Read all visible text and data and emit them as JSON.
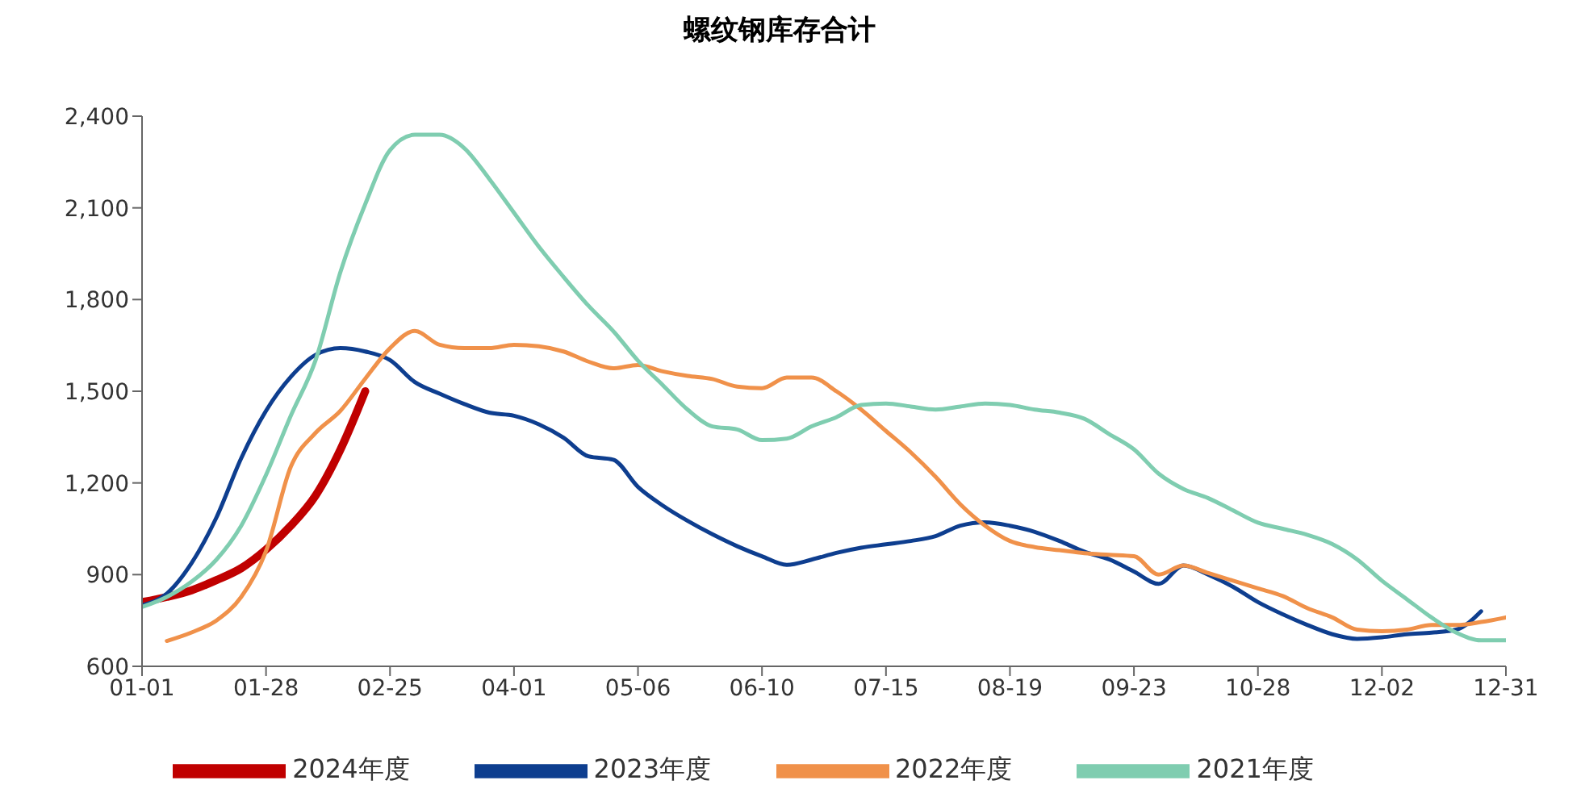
{
  "chart_data": {
    "type": "line",
    "title": "螺纹钢库存合计",
    "categories": [
      "01-01",
      null,
      null,
      null,
      null,
      "01-28",
      null,
      null,
      null,
      null,
      "02-25",
      null,
      null,
      null,
      null,
      "04-01",
      null,
      null,
      null,
      null,
      "05-06",
      null,
      null,
      null,
      null,
      "06-10",
      null,
      null,
      null,
      null,
      "07-15",
      null,
      null,
      null,
      null,
      "08-19",
      null,
      null,
      null,
      null,
      "09-23",
      null,
      null,
      null,
      null,
      "10-28",
      null,
      null,
      null,
      null,
      "12-02",
      null,
      null,
      null,
      null,
      "12-31"
    ],
    "series": [
      {
        "name": "2024年度",
        "color": "#c00000",
        "values": [
          810,
          827,
          849,
          882,
          921,
          982,
          1060,
          1159,
          1309,
          1500,
          null,
          null,
          null,
          null,
          null,
          null,
          null,
          null,
          null,
          null,
          null,
          null,
          null,
          null,
          null,
          null,
          null,
          null,
          null,
          null,
          null,
          null,
          null,
          null,
          null,
          null,
          null,
          null,
          null,
          null,
          null,
          null,
          null,
          null,
          null,
          null,
          null,
          null,
          null,
          null,
          null,
          null,
          null,
          null,
          null,
          null
        ]
      },
      {
        "name": "2023年度",
        "color": "#0e3e8f",
        "values": [
          800,
          838,
          938,
          1087,
          1281,
          1436,
          1547,
          1619,
          1641,
          1630,
          1602,
          1530,
          1492,
          1458,
          1430,
          1420,
          1392,
          1348,
          1287,
          1276,
          1187,
          1126,
          1076,
          1032,
          993,
          960,
          932,
          949,
          971,
          988,
          999,
          1010,
          1026,
          1060,
          1071,
          1060,
          1040,
          1010,
          975,
          950,
          910,
          870,
          930,
          900,
          860,
          810,
          770,
          735,
          705,
          690,
          695,
          705,
          710,
          720,
          780,
          null
        ]
      },
      {
        "name": "2022年度",
        "color": "#f0914a",
        "values": [
          null,
          683,
          711,
          750,
          827,
          977,
          1253,
          1364,
          1436,
          1541,
          1641,
          1697,
          1652,
          1641,
          1641,
          1652,
          1647,
          1630,
          1597,
          1575,
          1586,
          1565,
          1550,
          1540,
          1515,
          1510,
          1545,
          1545,
          1500,
          1440,
          1370,
          1300,
          1220,
          1130,
          1060,
          1010,
          990,
          980,
          970,
          965,
          960,
          900,
          930,
          905,
          880,
          855,
          830,
          790,
          760,
          720,
          715,
          720,
          735,
          735,
          745,
          760
        ]
      },
      {
        "name": "2021年度",
        "color": "#7fcdb0",
        "values": [
          794,
          827,
          877,
          949,
          1060,
          1226,
          1420,
          1602,
          1890,
          2112,
          2289,
          2339,
          2339,
          2295,
          2195,
          2084,
          1973,
          1874,
          1780,
          1697,
          1600,
          1520,
          1440,
          1385,
          1375,
          1340,
          1345,
          1385,
          1415,
          1455,
          1460,
          1450,
          1440,
          1450,
          1460,
          1455,
          1440,
          1430,
          1410,
          1360,
          1310,
          1230,
          1180,
          1150,
          1110,
          1070,
          1050,
          1030,
          1000,
          950,
          880,
          820,
          760,
          710,
          685,
          685
        ]
      }
    ],
    "ylim": [
      600,
      2400
    ],
    "yticks": [
      {
        "value": 600,
        "label": "600"
      },
      {
        "value": 900,
        "label": "900"
      },
      {
        "value": 1200,
        "label": "1,200"
      },
      {
        "value": 1500,
        "label": "1,500"
      },
      {
        "value": 1800,
        "label": "1,800"
      },
      {
        "value": 2100,
        "label": "2,100"
      },
      {
        "value": 2400,
        "label": "2,400"
      }
    ],
    "grid": false,
    "legend": "bottom",
    "marker": "none",
    "line_style": "solid"
  }
}
